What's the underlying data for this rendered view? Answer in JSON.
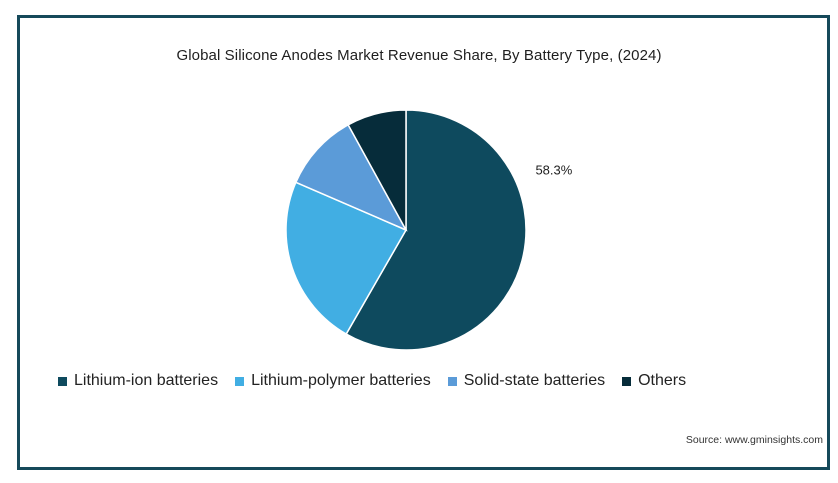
{
  "chart_data": {
    "type": "pie",
    "title": "Global Silicone Anodes Market Revenue Share, By Battery Type,  (2024)",
    "slices": [
      {
        "name": "Lithium-ion batteries",
        "value": 58.3,
        "color": "#0e4a5e",
        "label": "58.3%"
      },
      {
        "name": "Lithium-polymer batteries",
        "value": 23.2,
        "color": "#41aee3"
      },
      {
        "name": "Solid-state batteries",
        "value": 10.5,
        "color": "#5b9bd8"
      },
      {
        "name": "Others",
        "value": 8.0,
        "color": "#062c3a"
      }
    ],
    "start_angle_deg": 0,
    "direction": "clockwise",
    "legend_position": "bottom"
  },
  "source": "Source: www.gminsights.com"
}
